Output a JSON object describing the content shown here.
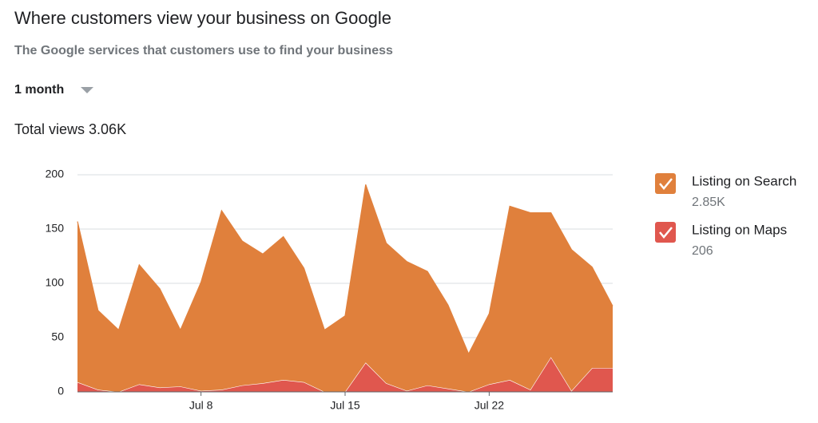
{
  "header": {
    "title": "Where customers view your business on Google",
    "subtitle": "The Google services that customers use to find your business",
    "period": "1 month",
    "total_views": "Total views 3.06K"
  },
  "chart_data": {
    "type": "stacked_area",
    "categories": [
      null,
      null,
      null,
      null,
      null,
      null,
      "Jul 8",
      null,
      null,
      null,
      null,
      null,
      null,
      "Jul 15",
      null,
      null,
      null,
      null,
      null,
      null,
      "Jul 22",
      null,
      null,
      null,
      null,
      null,
      null
    ],
    "series": [
      {
        "name": "Listing on Search",
        "color": "#e0803c",
        "total": "2.85K",
        "values": [
          148,
          73,
          57,
          110,
          91,
          52,
          100,
          165,
          133,
          119,
          132,
          105,
          57,
          70,
          164,
          129,
          119,
          105,
          77,
          35,
          65,
          160,
          163,
          133,
          130,
          93,
          57
        ]
      },
      {
        "name": "Listing on Maps",
        "color": "#e0574e",
        "total": "206",
        "values": [
          9,
          2,
          0,
          7,
          4,
          5,
          1,
          2,
          6,
          8,
          11,
          9,
          0,
          0,
          27,
          8,
          1,
          6,
          3,
          0,
          7,
          11,
          2,
          32,
          1,
          22,
          22
        ]
      }
    ],
    "ylim": [
      0,
      200
    ],
    "yticks": [
      0,
      50,
      100,
      150,
      200
    ],
    "grid": true
  }
}
